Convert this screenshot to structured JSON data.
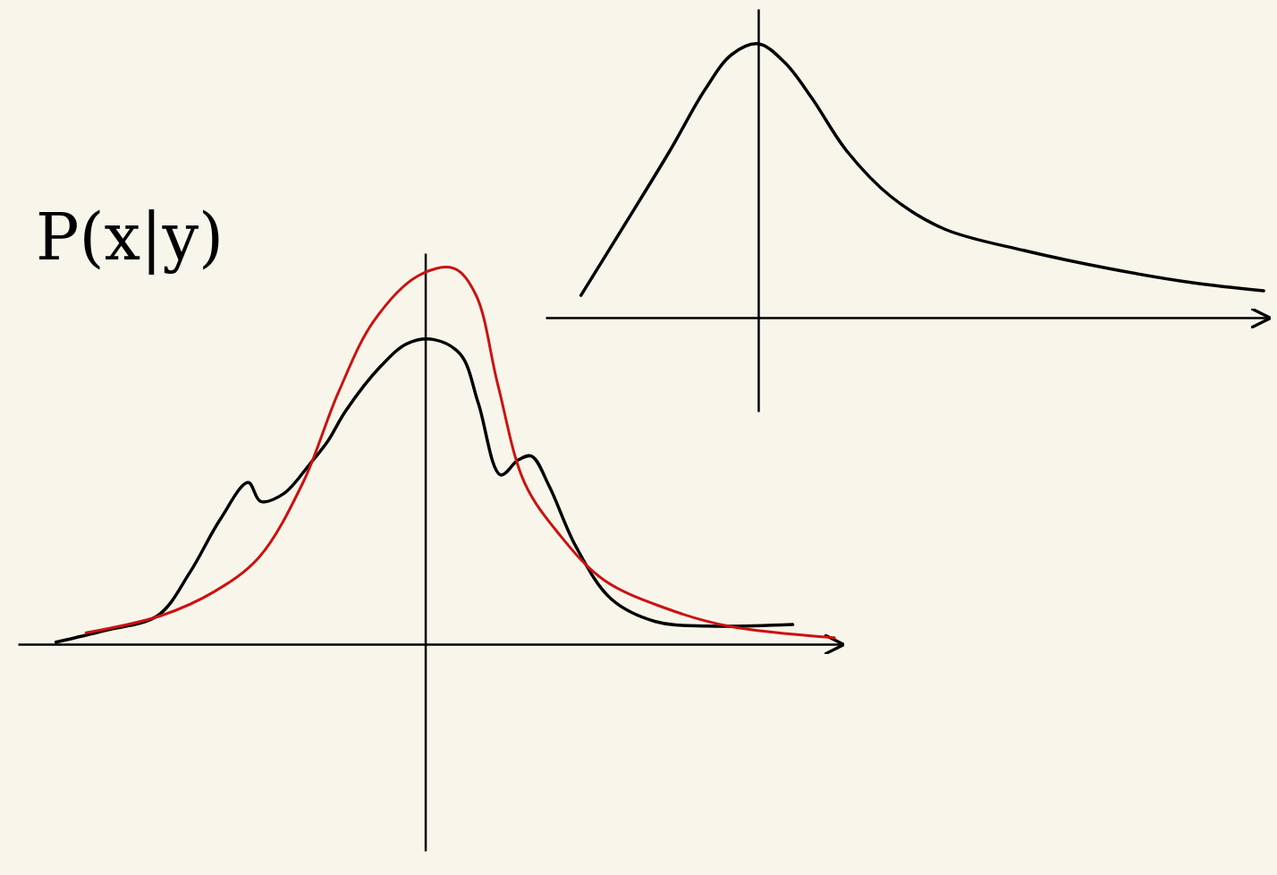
{
  "chart_data": [
    {
      "type": "line",
      "title": "P(x|y)",
      "xlim": [
        -4.6,
        4.7
      ],
      "ylim": [
        -0.55,
        1.04
      ],
      "xticks": [],
      "yticks": [],
      "tick_labels": false,
      "series": [
        {
          "color": "#000000",
          "x": [
            -4.17,
            -3.62,
            -3.02,
            -2.66,
            -2.32,
            -2.0,
            -1.86,
            -1.6,
            -1.3,
            -1.1,
            -0.9,
            -0.5,
            -0.2,
            0.1,
            0.4,
            0.6,
            0.85,
            1.05,
            1.2,
            1.4,
            1.7,
            2.1,
            2.6,
            3.2,
            4.15
          ],
          "values": [
            0.005,
            0.036,
            0.076,
            0.19,
            0.33,
            0.43,
            0.38,
            0.4,
            0.48,
            0.54,
            0.62,
            0.74,
            0.8,
            0.81,
            0.77,
            0.64,
            0.45,
            0.49,
            0.5,
            0.42,
            0.26,
            0.12,
            0.06,
            0.048,
            0.052
          ]
        },
        {
          "color": "#cc1111",
          "x": [
            -3.83,
            -2.98,
            -2.38,
            -1.88,
            -1.38,
            -0.98,
            -0.58,
            -0.08,
            0.32,
            0.57,
            0.82,
            1.12,
            1.52,
            2.02,
            2.72,
            3.42,
            4.62
          ],
          "values": [
            0.03,
            0.076,
            0.14,
            0.23,
            0.43,
            0.67,
            0.86,
            0.98,
            1.0,
            0.93,
            0.69,
            0.43,
            0.29,
            0.17,
            0.095,
            0.048,
            0.017
          ]
        }
      ]
    },
    {
      "type": "line",
      "xlim": [
        -2.4,
        5.75
      ],
      "ylim": [
        -0.35,
        1.15
      ],
      "xticks": [],
      "yticks": [],
      "tick_labels": false,
      "series": [
        {
          "color": "#000000",
          "x": [
            -2.0,
            -1.5,
            -1.0,
            -0.6,
            -0.3,
            0.0,
            0.3,
            0.6,
            1.0,
            1.5,
            2.1,
            3.0,
            4.0,
            4.9,
            5.7
          ],
          "values": [
            0.083,
            0.35,
            0.62,
            0.85,
            0.98,
            1.02,
            0.95,
            0.82,
            0.62,
            0.45,
            0.33,
            0.25,
            0.18,
            0.13,
            0.1
          ]
        }
      ]
    }
  ]
}
